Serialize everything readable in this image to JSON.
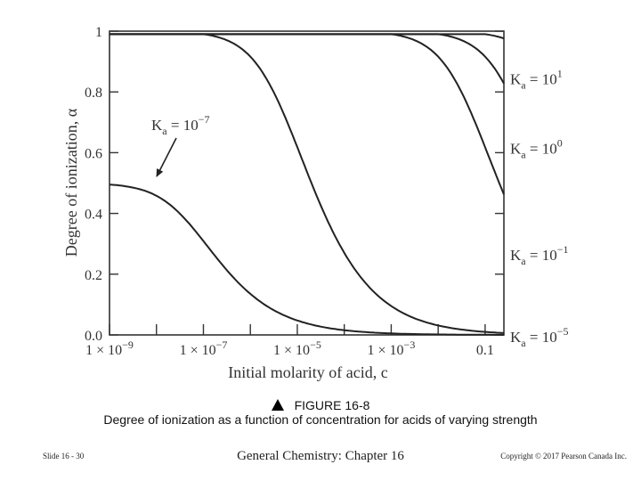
{
  "chart_data": {
    "type": "line",
    "title": "",
    "xlabel": "Initial molarity of acid, c",
    "ylabel": "Degree of ionization, α",
    "x_scale": "log10",
    "xlim": [
      -9,
      -0.6
    ],
    "ylim": [
      0,
      1
    ],
    "x_ticks": [
      {
        "value": -9,
        "mantissa": "1 × 10",
        "exp": "−9"
      },
      {
        "value": -7,
        "mantissa": "1 × 10",
        "exp": "−7"
      },
      {
        "value": -5,
        "mantissa": "1 × 10",
        "exp": "−5"
      },
      {
        "value": -3,
        "mantissa": "1 × 10",
        "exp": "−3"
      },
      {
        "value": -1,
        "mantissa": "0.1",
        "exp": ""
      }
    ],
    "y_ticks": [
      {
        "value": 0,
        "label": "0.0"
      },
      {
        "value": 0.2,
        "label": "0.2"
      },
      {
        "value": 0.4,
        "label": "0.4"
      },
      {
        "value": 0.6,
        "label": "0.6"
      },
      {
        "value": 0.8,
        "label": "0.8"
      },
      {
        "value": 1,
        "label": "1"
      }
    ],
    "series": [
      {
        "name": "Ka = 10^1",
        "ka_exp": "1",
        "log_ka": 1,
        "end_alpha": 0.92
      },
      {
        "name": "Ka = 10^0",
        "ka_exp": "0",
        "log_ka": 0,
        "end_alpha": 0.62
      },
      {
        "name": "Ka = 10^-1",
        "ka_exp": "−1",
        "log_ka": -1,
        "end_alpha": 0.27
      },
      {
        "name": "Ka = 10^-5",
        "ka_exp": "−5",
        "log_ka": -5,
        "end_alpha": 0.0
      },
      {
        "name": "Ka = 10^-7",
        "ka_exp": "−7",
        "log_ka": -7,
        "end_alpha": 0.0
      }
    ],
    "annotations": [
      {
        "target": "Ka = 10^-7",
        "ka_exp": "−7",
        "text": "Ka = 10^-7",
        "style": "arrow"
      }
    ],
    "ka_symbol": "K",
    "ka_sub": "a",
    "ka_eq": " = 10"
  },
  "caption": {
    "figure_number": "FIGURE 16-8",
    "description": "Degree of ionization as a function of concentration for acids of varying strength"
  },
  "footer": {
    "slide": "Slide 16 - 30",
    "chapter": "General Chemistry: Chapter 16",
    "copyright": "Copyright © 2017 Pearson Canada Inc."
  }
}
